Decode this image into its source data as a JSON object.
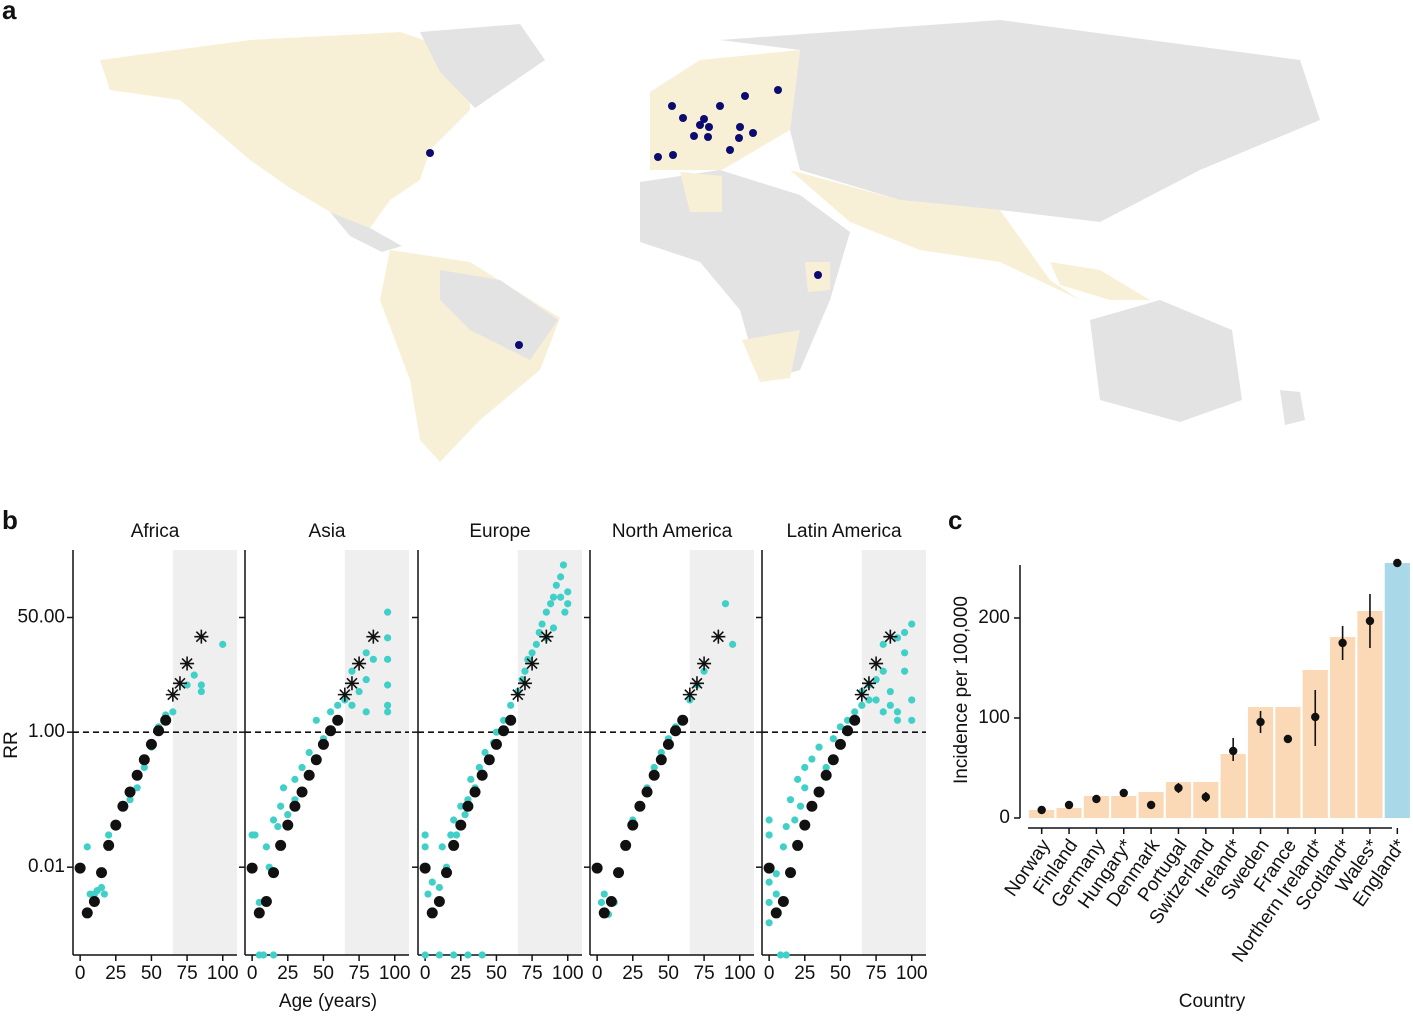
{
  "panel_labels": [
    "a",
    "b",
    "c"
  ],
  "chart_data": [
    {
      "type": "scatter",
      "xlabel": "Age (years)",
      "ylabel": "RR",
      "xlim": [
        -5,
        110
      ],
      "ylim": [
        0.0005,
        500
      ],
      "log_y": true,
      "xticks": [
        0,
        25,
        50,
        75,
        100
      ],
      "yticks": [
        {
          "value": 0.01,
          "label": "0.01"
        },
        {
          "value": 1,
          "label": "1.00"
        },
        {
          "value": 50,
          "label": "50.00"
        }
      ],
      "reference_line": 1,
      "shade_from": 65,
      "point_color": "#40d0c8",
      "shade_color": "#efefef",
      "reference": {
        "x": [
          0,
          5,
          10,
          15,
          20,
          25,
          30,
          35,
          40,
          45,
          50,
          55,
          60
        ],
        "y": [
          0.0097,
          0.0021,
          0.0031,
          0.0083,
          0.021,
          0.042,
          0.08,
          0.13,
          0.23,
          0.39,
          0.66,
          1.05,
          1.5
        ]
      },
      "stars": {
        "x": [
          65,
          70,
          75,
          85
        ],
        "y": [
          3.6,
          5.3,
          10.4,
          26
        ]
      },
      "facets": [
        {
          "title": "Africa",
          "x": [
            5,
            7,
            10,
            12,
            15,
            17,
            20,
            25,
            35,
            40,
            45,
            50,
            55,
            60,
            65,
            75,
            80,
            85,
            85,
            100
          ],
          "y": [
            0.02,
            0.004,
            0.004,
            0.0045,
            0.005,
            0.004,
            0.03,
            0.04,
            0.1,
            0.15,
            0.3,
            0.6,
            1.2,
            1.8,
            2,
            5,
            7,
            4,
            5,
            20
          ]
        },
        {
          "title": "Asia",
          "x": [
            0,
            2,
            5,
            5,
            8,
            15,
            10,
            12,
            15,
            18,
            20,
            22,
            25,
            30,
            30,
            35,
            40,
            45,
            50,
            55,
            60,
            65,
            70,
            75,
            80,
            80,
            85,
            95,
            95,
            95,
            95,
            95,
            95,
            80,
            70
          ],
          "y": [
            0.03,
            0.03,
            0.003,
            0.0005,
            0.0005,
            0.0005,
            0.02,
            0.01,
            0.05,
            0.04,
            0.08,
            0.15,
            0.06,
            0.1,
            0.2,
            0.3,
            0.5,
            1.5,
            0.8,
            2,
            2.5,
            3,
            8,
            4,
            15,
            6,
            12,
            60,
            25,
            12,
            5,
            2.5,
            2,
            2,
            2.5
          ]
        },
        {
          "title": "Europe",
          "x": [
            0,
            0,
            2,
            5,
            0,
            10,
            20,
            30,
            40,
            10,
            12,
            15,
            18,
            20,
            22,
            25,
            25,
            28,
            30,
            32,
            35,
            38,
            40,
            42,
            45,
            48,
            50,
            55,
            60,
            65,
            68,
            70,
            72,
            75,
            78,
            80,
            82,
            85,
            88,
            90,
            92,
            95,
            97,
            95,
            98,
            100,
            100,
            90,
            85
          ],
          "y": [
            0.03,
            0.02,
            0.004,
            0.006,
            0.0005,
            0.0005,
            0.0005,
            0.0005,
            0.0005,
            0.005,
            0.02,
            0.01,
            0.03,
            0.05,
            0.03,
            0.08,
            0.04,
            0.06,
            0.1,
            0.2,
            0.15,
            0.3,
            0.25,
            0.5,
            0.4,
            0.7,
            1,
            1.5,
            2.5,
            4,
            6,
            8,
            12,
            15,
            20,
            30,
            40,
            60,
            80,
            100,
            150,
            200,
            300,
            100,
            60,
            120,
            80,
            35,
            25
          ]
        },
        {
          "title": "North America",
          "x": [
            0,
            3,
            5,
            8,
            12,
            20,
            25,
            30,
            35,
            40,
            45,
            50,
            55,
            60,
            65,
            70,
            75,
            90,
            95
          ],
          "y": [
            0.01,
            0.003,
            0.004,
            0.002,
            0.003,
            0.02,
            0.05,
            0.08,
            0.15,
            0.3,
            0.5,
            0.8,
            1.2,
            1.5,
            3,
            5,
            8,
            80,
            20
          ]
        },
        {
          "title": "Latin America",
          "x": [
            0,
            0,
            0,
            0,
            0,
            5,
            5,
            8,
            10,
            10,
            12,
            12,
            15,
            18,
            20,
            22,
            25,
            25,
            30,
            35,
            40,
            45,
            50,
            55,
            60,
            65,
            65,
            70,
            70,
            75,
            75,
            80,
            80,
            80,
            85,
            85,
            90,
            90,
            90,
            95,
            95,
            100,
            100,
            100,
            95
          ],
          "y": [
            0.05,
            0.03,
            0.006,
            0.003,
            0.0015,
            0.004,
            0.008,
            0.0005,
            0.003,
            0.02,
            0.0005,
            0.04,
            0.1,
            0.05,
            0.2,
            0.08,
            0.15,
            0.3,
            0.4,
            0.6,
            0.3,
            0.8,
            1.2,
            1.5,
            2,
            2.5,
            4,
            3,
            5,
            6,
            3,
            2,
            8,
            20,
            4,
            2.5,
            2,
            1.5,
            25,
            15,
            30,
            3,
            1.5,
            40,
            8
          ]
        }
      ]
    },
    {
      "type": "bar",
      "xlabel": "Country",
      "ylabel": "Incidence per 100,000",
      "ylim": [
        0,
        265
      ],
      "yticks": [
        0,
        100,
        200
      ],
      "categories": [
        "Norway",
        "Finland",
        "Germany",
        "Hungary*",
        "Denmark",
        "Portugal",
        "Switzerland",
        "Ireland*",
        "Sweden",
        "France",
        "Northern Ireland*",
        "Scotland*",
        "Wales*",
        "England*"
      ],
      "values": [
        8,
        10,
        22,
        22,
        26,
        36,
        36,
        64,
        111,
        111,
        148,
        181,
        207,
        255
      ],
      "colors": [
        "#fcd9b6",
        "#fcd9b6",
        "#fcd9b6",
        "#fcd9b6",
        "#fcd9b6",
        "#fcd9b6",
        "#fcd9b6",
        "#fcd9b6",
        "#fcd9b6",
        "#fcd9b6",
        "#fcd9b6",
        "#fcd9b6",
        "#fcd9b6",
        "#a9d9e8"
      ],
      "estimates": [
        8,
        13,
        19,
        25,
        13,
        30,
        21,
        67,
        96,
        79,
        101,
        175,
        197,
        255
      ],
      "lower": [
        5,
        9,
        17,
        21,
        9,
        25,
        16,
        57,
        85,
        76,
        72,
        158,
        170,
        253
      ],
      "upper": [
        11,
        17,
        21,
        29,
        17,
        35,
        26,
        80,
        107,
        82,
        128,
        192,
        224,
        257
      ]
    }
  ]
}
